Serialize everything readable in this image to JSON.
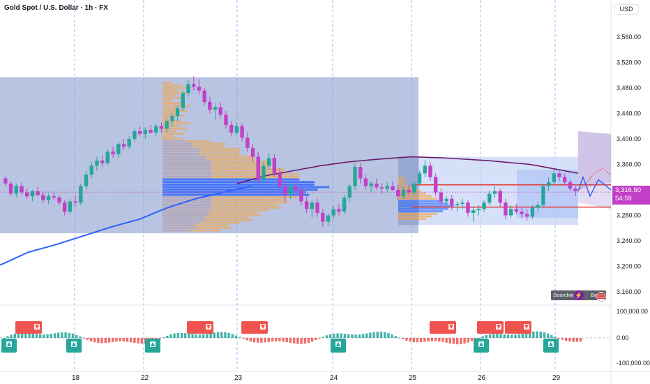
{
  "header": {
    "title": "Gold Spot / U.S. Dollar · 1h · FX",
    "currency": "USD"
  },
  "price_tag": {
    "price": "3,316.50",
    "countdown": "54:59"
  },
  "badges": {
    "searching": "Searching",
    "bars": "Bars",
    "bars_suffix": "s"
  },
  "colors": {
    "bull": "#26a69a",
    "bear": "#ef5350",
    "purple": "#c140c7",
    "ma_blue": "#2962ff",
    "vwap_purple": "#6a1b6a",
    "range_box": "#8c9fce",
    "sr_line": "#e53935",
    "grid_dash": "#2962ff"
  },
  "chart_data": {
    "type": "candlestick",
    "symbol": "Gold Spot / U.S. Dollar",
    "interval": "1h",
    "y_axis": {
      "ticks": [
        "3,560.00",
        "3,520.00",
        "3,480.00",
        "3,440.00",
        "3,400.00",
        "3,360.00",
        "3,320.00",
        "3,280.00",
        "3,240.00",
        "3,200.00",
        "3,160.00"
      ],
      "tick_values": [
        3560,
        3520,
        3480,
        3440,
        3400,
        3360,
        3320,
        3280,
        3240,
        3200,
        3160
      ],
      "range": [
        3140,
        3590
      ]
    },
    "x_axis": {
      "labels": [
        "18",
        "22",
        "23",
        "24",
        "25",
        "26",
        "29"
      ]
    },
    "last_price": 3316.5,
    "support_resistance": [
      3328,
      3293
    ],
    "range_box": [
      3497,
      3252
    ],
    "ohlc": [
      [
        3338,
        3342,
        3326,
        3330
      ],
      [
        3330,
        3334,
        3310,
        3314
      ],
      [
        3314,
        3330,
        3308,
        3326
      ],
      [
        3326,
        3332,
        3312,
        3316
      ],
      [
        3316,
        3322,
        3306,
        3310
      ],
      [
        3310,
        3320,
        3302,
        3318
      ],
      [
        3318,
        3324,
        3310,
        3312
      ],
      [
        3312,
        3318,
        3300,
        3304
      ],
      [
        3304,
        3314,
        3298,
        3310
      ],
      [
        3310,
        3318,
        3304,
        3308
      ],
      [
        3308,
        3312,
        3296,
        3300
      ],
      [
        3300,
        3304,
        3280,
        3286
      ],
      [
        3286,
        3306,
        3282,
        3302
      ],
      [
        3302,
        3312,
        3294,
        3300
      ],
      [
        3300,
        3330,
        3296,
        3326
      ],
      [
        3326,
        3350,
        3320,
        3344
      ],
      [
        3344,
        3364,
        3338,
        3358
      ],
      [
        3358,
        3372,
        3350,
        3366
      ],
      [
        3366,
        3374,
        3356,
        3362
      ],
      [
        3362,
        3384,
        3358,
        3380
      ],
      [
        3380,
        3388,
        3370,
        3376
      ],
      [
        3376,
        3396,
        3370,
        3392
      ],
      [
        3392,
        3400,
        3382,
        3388
      ],
      [
        3388,
        3404,
        3384,
        3400
      ],
      [
        3400,
        3416,
        3396,
        3412
      ],
      [
        3412,
        3420,
        3404,
        3408
      ],
      [
        3408,
        3418,
        3400,
        3414
      ],
      [
        3414,
        3422,
        3408,
        3410
      ],
      [
        3410,
        3424,
        3404,
        3420
      ],
      [
        3420,
        3426,
        3410,
        3416
      ],
      [
        3416,
        3432,
        3410,
        3428
      ],
      [
        3428,
        3440,
        3420,
        3436
      ],
      [
        3436,
        3452,
        3428,
        3448
      ],
      [
        3448,
        3476,
        3444,
        3472
      ],
      [
        3472,
        3492,
        3466,
        3486
      ],
      [
        3486,
        3498,
        3476,
        3482
      ],
      [
        3482,
        3494,
        3470,
        3476
      ],
      [
        3476,
        3480,
        3452,
        3458
      ],
      [
        3458,
        3466,
        3440,
        3446
      ],
      [
        3446,
        3456,
        3430,
        3450
      ],
      [
        3450,
        3458,
        3432,
        3438
      ],
      [
        3438,
        3444,
        3416,
        3422
      ],
      [
        3422,
        3428,
        3404,
        3410
      ],
      [
        3410,
        3426,
        3406,
        3420
      ],
      [
        3420,
        3424,
        3396,
        3402
      ],
      [
        3402,
        3410,
        3380,
        3386
      ],
      [
        3386,
        3392,
        3364,
        3372
      ],
      [
        3372,
        3380,
        3330,
        3336
      ],
      [
        3336,
        3364,
        3330,
        3358
      ],
      [
        3358,
        3378,
        3352,
        3370
      ],
      [
        3370,
        3376,
        3340,
        3346
      ],
      [
        3346,
        3354,
        3320,
        3326
      ],
      [
        3326,
        3334,
        3300,
        3312
      ],
      [
        3312,
        3330,
        3306,
        3326
      ],
      [
        3326,
        3338,
        3316,
        3320
      ],
      [
        3320,
        3326,
        3296,
        3302
      ],
      [
        3302,
        3310,
        3284,
        3290
      ],
      [
        3290,
        3304,
        3276,
        3300
      ],
      [
        3300,
        3306,
        3278,
        3284
      ],
      [
        3284,
        3290,
        3262,
        3270
      ],
      [
        3270,
        3284,
        3264,
        3280
      ],
      [
        3280,
        3296,
        3274,
        3290
      ],
      [
        3290,
        3298,
        3280,
        3286
      ],
      [
        3286,
        3312,
        3282,
        3308
      ],
      [
        3308,
        3330,
        3302,
        3326
      ],
      [
        3326,
        3362,
        3320,
        3356
      ],
      [
        3356,
        3362,
        3330,
        3338
      ],
      [
        3338,
        3344,
        3320,
        3326
      ],
      [
        3326,
        3334,
        3316,
        3330
      ],
      [
        3330,
        3338,
        3320,
        3324
      ],
      [
        3324,
        3330,
        3314,
        3322
      ],
      [
        3322,
        3332,
        3316,
        3326
      ],
      [
        3326,
        3334,
        3318,
        3320
      ],
      [
        3320,
        3328,
        3304,
        3310
      ],
      [
        3310,
        3324,
        3306,
        3320
      ],
      [
        3320,
        3328,
        3312,
        3316
      ],
      [
        3316,
        3334,
        3312,
        3330
      ],
      [
        3330,
        3350,
        3326,
        3346
      ],
      [
        3346,
        3366,
        3340,
        3358
      ],
      [
        3358,
        3364,
        3334,
        3340
      ],
      [
        3340,
        3346,
        3310,
        3316
      ],
      [
        3316,
        3322,
        3296,
        3302
      ],
      [
        3302,
        3310,
        3294,
        3306
      ],
      [
        3306,
        3312,
        3288,
        3296
      ],
      [
        3296,
        3302,
        3286,
        3298
      ],
      [
        3298,
        3306,
        3290,
        3300
      ],
      [
        3300,
        3304,
        3278,
        3284
      ],
      [
        3284,
        3292,
        3270,
        3288
      ],
      [
        3288,
        3296,
        3280,
        3290
      ],
      [
        3290,
        3304,
        3286,
        3300
      ],
      [
        3300,
        3318,
        3296,
        3314
      ],
      [
        3314,
        3326,
        3308,
        3318
      ],
      [
        3318,
        3322,
        3294,
        3300
      ],
      [
        3300,
        3306,
        3274,
        3280
      ],
      [
        3280,
        3296,
        3276,
        3290
      ],
      [
        3290,
        3298,
        3282,
        3286
      ],
      [
        3286,
        3294,
        3276,
        3282
      ],
      [
        3282,
        3290,
        3272,
        3278
      ],
      [
        3278,
        3296,
        3274,
        3292
      ],
      [
        3292,
        3302,
        3286,
        3296
      ],
      [
        3296,
        3330,
        3292,
        3326
      ],
      [
        3326,
        3340,
        3318,
        3332
      ],
      [
        3332,
        3352,
        3326,
        3346
      ],
      [
        3346,
        3350,
        3334,
        3340
      ],
      [
        3340,
        3346,
        3326,
        3332
      ],
      [
        3332,
        3336,
        3318,
        3322
      ],
      [
        3322,
        3326,
        3310,
        3318
      ]
    ]
  }
}
